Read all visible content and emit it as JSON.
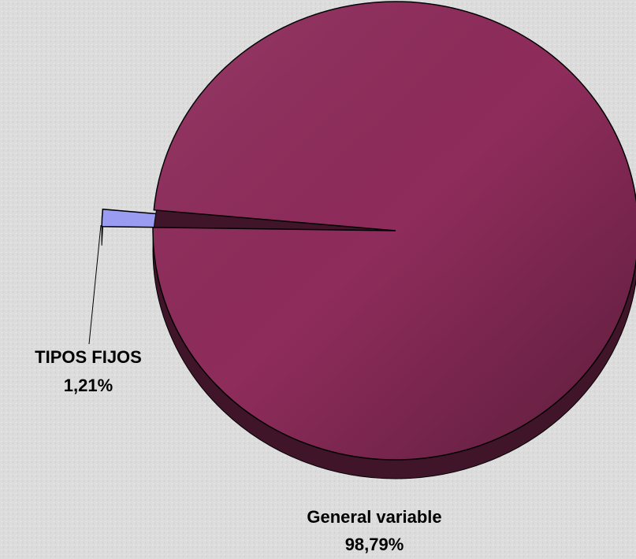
{
  "chart_data": {
    "type": "pie",
    "categories": [
      "TIPOS FIJOS",
      "General variable"
    ],
    "values": [
      1.21,
      98.79
    ],
    "value_labels": [
      "1,21%",
      "98,79%"
    ],
    "colors": [
      "#9a9cf2",
      "#8e2c5b"
    ]
  }
}
